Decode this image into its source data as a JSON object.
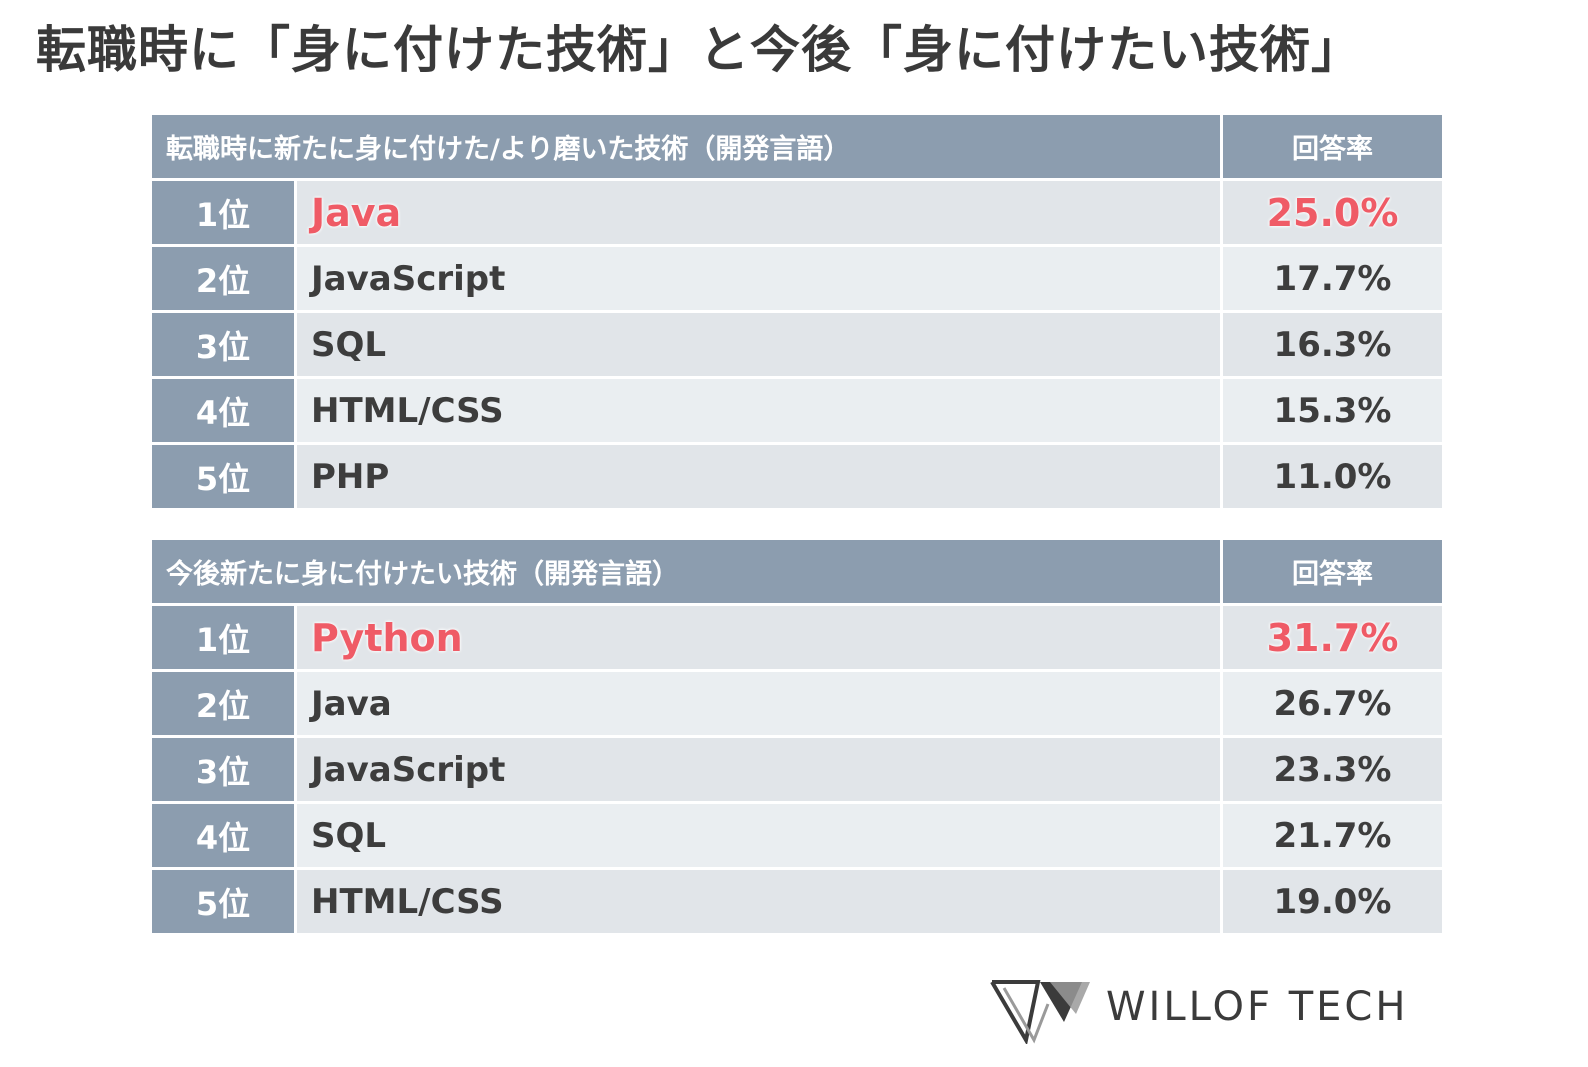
{
  "title": "転職時に「身に付けた技術」と今後「身に付けたい技術」",
  "chart_data": [
    {
      "type": "table",
      "title": "転職時に新たに身に付けた/より磨いた技術（開発言語）",
      "columns": [
        "転職時に新たに身に付けた/より磨いた技術（開発言語）",
        "回答率"
      ],
      "rows": [
        {
          "rank": "1位",
          "name": "Java",
          "rate": "25.0%",
          "value": 25.0
        },
        {
          "rank": "2位",
          "name": "JavaScript",
          "rate": "17.7%",
          "value": 17.7
        },
        {
          "rank": "3位",
          "name": "SQL",
          "rate": "16.3%",
          "value": 16.3
        },
        {
          "rank": "4位",
          "name": "HTML/CSS",
          "rate": "15.3%",
          "value": 15.3
        },
        {
          "rank": "5位",
          "name": "PHP",
          "rate": "11.0%",
          "value": 11.0
        }
      ]
    },
    {
      "type": "table",
      "title": "今後新たに身に付けたい技術（開発言語）",
      "columns": [
        "今後新たに身に付けたい技術（開発言語）",
        "回答率"
      ],
      "rows": [
        {
          "rank": "1位",
          "name": "Python",
          "rate": "31.7%",
          "value": 31.7
        },
        {
          "rank": "2位",
          "name": "Java",
          "rate": "26.7%",
          "value": 26.7
        },
        {
          "rank": "3位",
          "name": "JavaScript",
          "rate": "23.3%",
          "value": 23.3
        },
        {
          "rank": "4位",
          "name": "SQL",
          "rate": "21.7%",
          "value": 21.7
        },
        {
          "rank": "5位",
          "name": "HTML/CSS",
          "rate": "19.0%",
          "value": 19.0
        }
      ]
    }
  ],
  "brand": {
    "name": "WILLOF TECH",
    "icon": "willof-logo-icon"
  },
  "colors": {
    "header": "#8c9daf",
    "row_odd": "#e1e5e9",
    "row_even": "#eaeef1",
    "highlight": "#ef5b66",
    "text": "#3d3d3d"
  }
}
